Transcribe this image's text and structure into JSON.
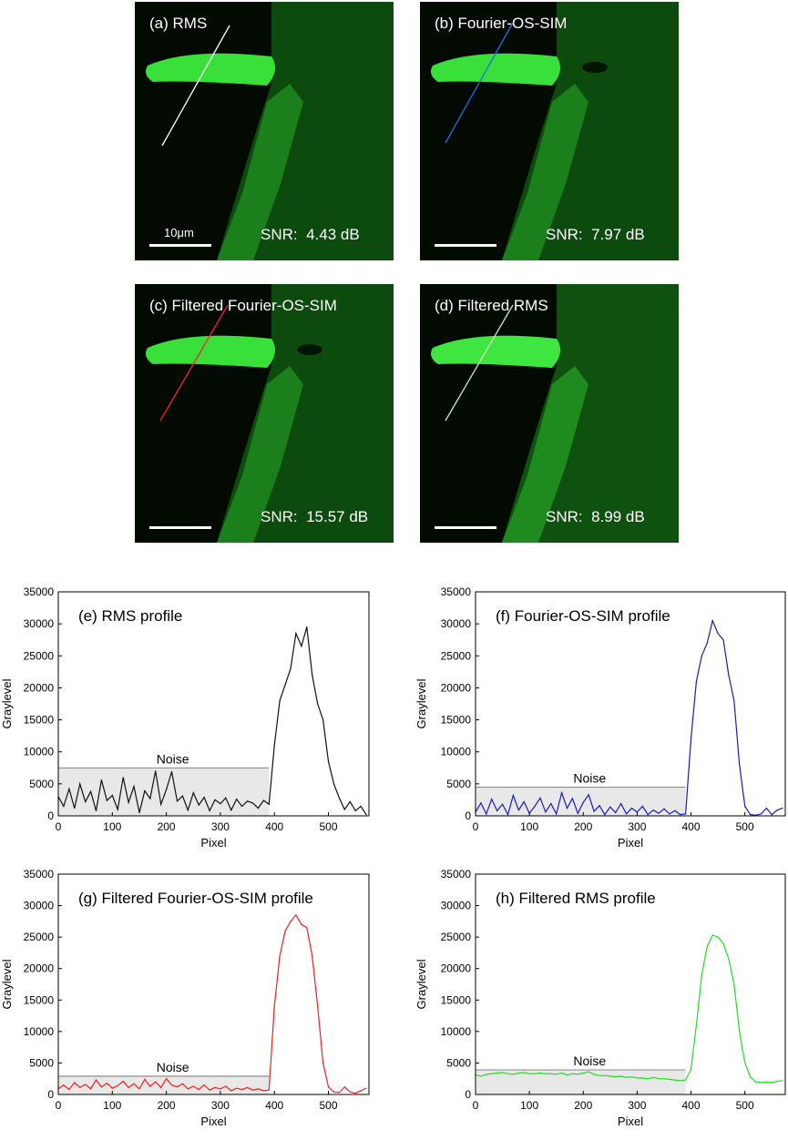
{
  "images": [
    {
      "label": "(a) RMS",
      "snr_label": "SNR:",
      "snr_value": "4.43 dB",
      "scalebar_label": "10μm",
      "line_color": "#ffffff"
    },
    {
      "label": "(b) Fourier-OS-SIM",
      "snr_label": "SNR:",
      "snr_value": "7.97 dB",
      "scalebar_label": "",
      "line_color": "#1f6fe0"
    },
    {
      "label": "(c) Filtered Fourier-OS-SIM",
      "snr_label": "SNR:",
      "snr_value": "15.57 dB",
      "scalebar_label": "",
      "line_color": "#ff2020"
    },
    {
      "label": "(d) Filtered RMS",
      "snr_label": "SNR:",
      "snr_value": "8.99 dB",
      "scalebar_label": "",
      "line_color": "#c8f0b0"
    }
  ],
  "chart_data": [
    {
      "type": "line",
      "title": "(e) RMS profile",
      "xlabel": "Pixel",
      "ylabel": "Graylevel",
      "xlim": [
        0,
        575
      ],
      "ylim": [
        0,
        35000
      ],
      "xticks": [
        0,
        100,
        200,
        300,
        400,
        500
      ],
      "yticks": [
        0,
        5000,
        10000,
        15000,
        20000,
        25000,
        30000,
        35000
      ],
      "color": "#111111",
      "noise_label": "Noise",
      "noise_level": 7500,
      "noise_xmax": 390,
      "series": [
        {
          "x": [
            0,
            10,
            20,
            30,
            40,
            50,
            60,
            70,
            80,
            90,
            100,
            110,
            120,
            130,
            140,
            150,
            160,
            170,
            180,
            190,
            200,
            210,
            220,
            230,
            240,
            250,
            260,
            270,
            280,
            290,
            300,
            310,
            320,
            330,
            340,
            350,
            360,
            370,
            380,
            390,
            400,
            410,
            420,
            430,
            440,
            450,
            460,
            470,
            480,
            490,
            500,
            510,
            520,
            530,
            540,
            550,
            560,
            570
          ],
          "y": [
            3000,
            1500,
            4200,
            1200,
            5000,
            2200,
            3800,
            800,
            5600,
            2400,
            3200,
            1000,
            6000,
            2100,
            4600,
            500,
            3900,
            2700,
            7000,
            1800,
            4100,
            6900,
            2300,
            3100,
            900,
            3600,
            1700,
            2900,
            800,
            2500,
            1900,
            2800,
            900,
            2600,
            1500,
            2300,
            2000,
            1200,
            2400,
            1800,
            11000,
            18000,
            20500,
            23000,
            28500,
            26500,
            29500,
            22000,
            17500,
            15000,
            8500,
            5000,
            2800,
            1000,
            2200,
            800,
            1500,
            200
          ]
        }
      ]
    },
    {
      "type": "line",
      "title": "(f) Fourier-OS-SIM profile",
      "xlabel": "Pixel",
      "ylabel": "Graylevel",
      "xlim": [
        0,
        575
      ],
      "ylim": [
        0,
        35000
      ],
      "xticks": [
        0,
        100,
        200,
        300,
        400,
        500
      ],
      "yticks": [
        0,
        5000,
        10000,
        15000,
        20000,
        25000,
        30000,
        35000
      ],
      "color": "#1a1ac8",
      "noise_label": "Noise",
      "noise_level": 4500,
      "noise_xmax": 390,
      "series": [
        {
          "x": [
            0,
            10,
            20,
            30,
            40,
            50,
            60,
            70,
            80,
            90,
            100,
            110,
            120,
            130,
            140,
            150,
            160,
            170,
            180,
            190,
            200,
            210,
            220,
            230,
            240,
            250,
            260,
            270,
            280,
            290,
            300,
            310,
            320,
            330,
            340,
            350,
            360,
            370,
            380,
            390,
            400,
            410,
            420,
            430,
            440,
            450,
            460,
            470,
            480,
            490,
            500,
            510,
            520,
            530,
            540,
            550,
            560,
            570
          ],
          "y": [
            600,
            2000,
            300,
            2600,
            800,
            1800,
            200,
            3200,
            900,
            2200,
            400,
            1500,
            2800,
            600,
            1900,
            300,
            3600,
            1200,
            2700,
            400,
            2100,
            3300,
            700,
            1600,
            200,
            1400,
            500,
            1900,
            300,
            1200,
            600,
            1500,
            200,
            900,
            400,
            1100,
            300,
            800,
            200,
            300,
            12000,
            21000,
            25000,
            27000,
            30500,
            28500,
            27500,
            22000,
            18000,
            8000,
            1500,
            200,
            100,
            300,
            1200,
            200,
            900,
            1200
          ]
        }
      ]
    },
    {
      "type": "line",
      "title": "(g) Filtered Fourier-OS-SIM profile",
      "xlabel": "Pixel",
      "ylabel": "Graylevel",
      "xlim": [
        0,
        575
      ],
      "ylim": [
        0,
        35000
      ],
      "xticks": [
        0,
        100,
        200,
        300,
        400,
        500
      ],
      "yticks": [
        0,
        5000,
        10000,
        15000,
        20000,
        25000,
        30000,
        35000
      ],
      "color": "#ff1a1a",
      "noise_label": "Noise",
      "noise_level": 2900,
      "noise_xmax": 390,
      "series": [
        {
          "x": [
            0,
            10,
            20,
            30,
            40,
            50,
            60,
            70,
            80,
            90,
            100,
            110,
            120,
            130,
            140,
            150,
            160,
            170,
            180,
            190,
            200,
            210,
            220,
            230,
            240,
            250,
            260,
            270,
            280,
            290,
            300,
            310,
            320,
            330,
            340,
            350,
            360,
            370,
            380,
            390,
            400,
            410,
            420,
            430,
            440,
            450,
            460,
            470,
            480,
            490,
            500,
            510,
            520,
            530,
            540,
            550,
            560,
            570
          ],
          "y": [
            900,
            1500,
            800,
            1900,
            1100,
            1600,
            900,
            2300,
            1200,
            1800,
            1000,
            1400,
            2100,
            1100,
            1700,
            900,
            2400,
            1300,
            2000,
            1100,
            2500,
            1500,
            1200,
            1700,
            900,
            1300,
            800,
            1500,
            700,
            1100,
            900,
            1300,
            600,
            1000,
            800,
            1100,
            700,
            900,
            600,
            700,
            14000,
            22000,
            26000,
            27500,
            28500,
            27000,
            26500,
            22000,
            14000,
            5000,
            1200,
            400,
            300,
            1200,
            400,
            200,
            600,
            1000
          ]
        }
      ]
    },
    {
      "type": "line",
      "title": "(h) Filtered RMS profile",
      "xlabel": "Pixel",
      "ylabel": "Graylevel",
      "xlim": [
        0,
        575
      ],
      "ylim": [
        0,
        35000
      ],
      "xticks": [
        0,
        100,
        200,
        300,
        400,
        500
      ],
      "yticks": [
        0,
        5000,
        10000,
        15000,
        20000,
        25000,
        30000,
        35000
      ],
      "color": "#1ee01e",
      "noise_label": "Noise",
      "noise_level": 3900,
      "noise_xmax": 390,
      "series": [
        {
          "x": [
            0,
            10,
            20,
            30,
            40,
            50,
            60,
            70,
            80,
            90,
            100,
            110,
            120,
            130,
            140,
            150,
            160,
            170,
            180,
            190,
            200,
            210,
            220,
            230,
            240,
            250,
            260,
            270,
            280,
            290,
            300,
            310,
            320,
            330,
            340,
            350,
            360,
            370,
            380,
            390,
            400,
            410,
            420,
            430,
            440,
            450,
            460,
            470,
            480,
            490,
            500,
            510,
            520,
            530,
            540,
            550,
            560,
            570
          ],
          "y": [
            3100,
            2900,
            3200,
            3300,
            3400,
            3500,
            3300,
            3200,
            3400,
            3500,
            3300,
            3300,
            3400,
            3300,
            3300,
            3200,
            3400,
            3100,
            3300,
            3200,
            3400,
            3600,
            3200,
            3000,
            3000,
            2900,
            2800,
            2900,
            2700,
            2800,
            2600,
            2600,
            2500,
            2700,
            2500,
            2500,
            2400,
            2300,
            2200,
            2300,
            4000,
            11000,
            19000,
            23500,
            25300,
            25000,
            24000,
            21500,
            17500,
            10000,
            5000,
            2800,
            2000,
            1900,
            2000,
            1900,
            2100,
            2200
          ]
        }
      ]
    }
  ]
}
